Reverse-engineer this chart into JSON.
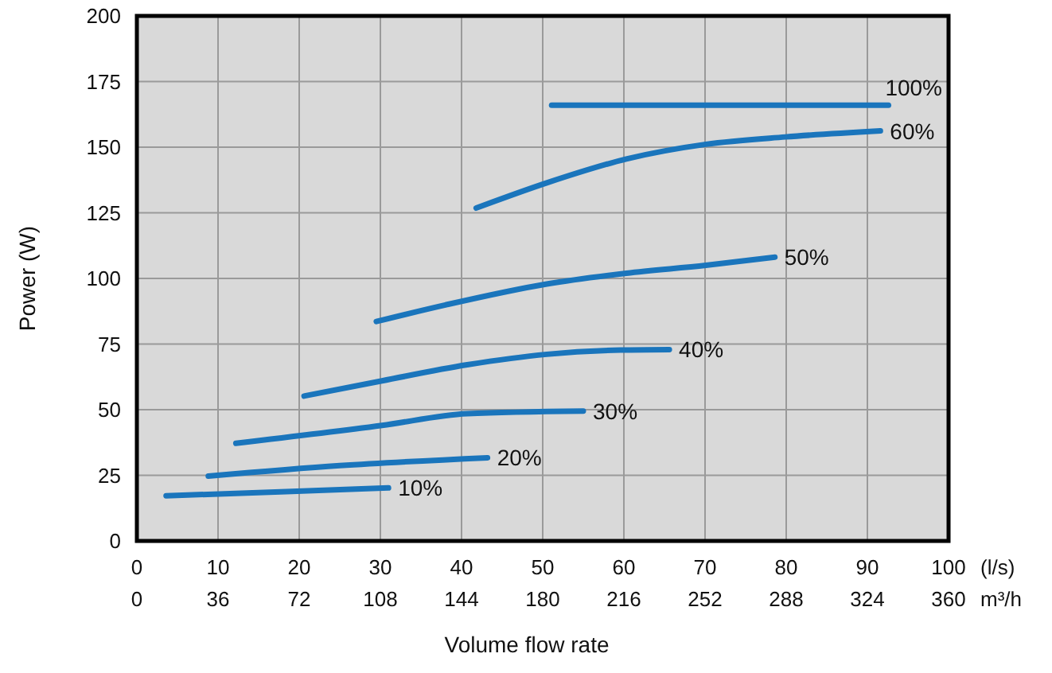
{
  "chart_data": {
    "type": "line",
    "xlabel": "Volume flow rate",
    "ylabel": "Power (W)",
    "xlim": [
      0,
      100
    ],
    "xticks": [
      0,
      10,
      20,
      30,
      40,
      50,
      60,
      70,
      80,
      90,
      100
    ],
    "x2lim": [
      0,
      360
    ],
    "x2ticks": [
      0,
      36,
      72,
      108,
      144,
      180,
      216,
      252,
      288,
      324,
      360
    ],
    "ylim": [
      0,
      200
    ],
    "yticks": [
      0,
      25,
      50,
      75,
      100,
      125,
      150,
      175,
      200
    ],
    "grid": true,
    "marker": "none",
    "line_style": "solid",
    "annotations": [
      "(l/s)",
      "m³/h"
    ],
    "series": [
      {
        "name": "10%",
        "color": "#1a75bc",
        "x": [
          3.6,
          18.4,
          31
        ],
        "values": [
          17.2,
          18.8,
          20.2
        ]
      },
      {
        "name": "20%",
        "color": "#1a75bc",
        "x": [
          8.8,
          25,
          43.2
        ],
        "values": [
          24.7,
          28.7,
          31.7
        ]
      },
      {
        "name": "30%",
        "color": "#1a75bc",
        "x": [
          12.2,
          30.2,
          40.7,
          55
        ],
        "values": [
          37.2,
          44,
          48.5,
          49.5
        ]
      },
      {
        "name": "40%",
        "color": "#1a75bc",
        "x": [
          20.6,
          30.2,
          40.7,
          50.5,
          59.6,
          65.6
        ],
        "values": [
          55.2,
          61,
          67.1,
          71.1,
          72.7,
          72.9
        ]
      },
      {
        "name": "50%",
        "color": "#1a75bc",
        "x": [
          29.5,
          38,
          50.5,
          60.3,
          70.1,
          78.6
        ],
        "values": [
          83.6,
          89.9,
          97.9,
          102,
          105,
          108.1
        ]
      },
      {
        "name": "60%",
        "color": "#1a75bc",
        "x": [
          41.8,
          50.5,
          60.3,
          70.1,
          79.9,
          91.6
        ],
        "values": [
          126.8,
          136.4,
          145.5,
          151.1,
          153.9,
          156.2
        ]
      },
      {
        "name": "100%",
        "color": "#1a75bc",
        "x": [
          51.1,
          92.6
        ],
        "values": [
          166,
          166
        ]
      }
    ]
  }
}
